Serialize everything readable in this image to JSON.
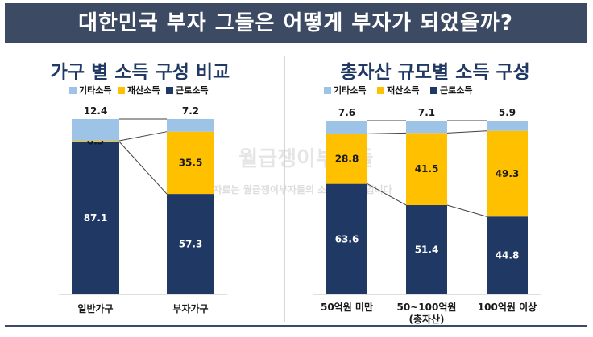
{
  "header": {
    "title": "대한민국 부자 그들은 어떻게 부자가 되었을까?"
  },
  "watermark": {
    "brand": "월급쟁이부자들",
    "notice": "이 자료는 월급쟁이부자들의 소중한 자산입니다"
  },
  "colors": {
    "title_bg": "#3d4a63",
    "wage": "#203864",
    "property": "#ffc000",
    "other": "#9dc3e6",
    "chart_title": "#1f3864"
  },
  "chart_data": [
    {
      "type": "bar",
      "stacked": true,
      "title": "가구 별 소득 구성 비교",
      "categories": [
        "일반가구",
        "부자가구"
      ],
      "series": [
        {
          "name": "근로소득",
          "values": [
            87.1,
            57.3
          ]
        },
        {
          "name": "재산소득",
          "values": [
            0.5,
            35.5
          ]
        },
        {
          "name": "기타소득",
          "values": [
            12.4,
            7.2
          ]
        }
      ],
      "legend": [
        "기타소득",
        "재산소득",
        "근로소득"
      ],
      "legend_position": "top",
      "ylim": [
        0,
        100
      ],
      "grid": false
    },
    {
      "type": "bar",
      "stacked": true,
      "title": "총자산 규모별 소득 구성",
      "categories": [
        "50억원 미만",
        "50~100억원\n(총자산)",
        "100억원 이상"
      ],
      "series": [
        {
          "name": "근로소득",
          "values": [
            63.6,
            51.4,
            44.8
          ]
        },
        {
          "name": "재산소득",
          "values": [
            28.8,
            41.5,
            49.3
          ]
        },
        {
          "name": "기타소득",
          "values": [
            7.6,
            7.1,
            5.9
          ]
        }
      ],
      "legend": [
        "기타소득",
        "재산소득",
        "근로소득"
      ],
      "legend_position": "top",
      "ylim": [
        0,
        100
      ],
      "grid": false
    }
  ]
}
